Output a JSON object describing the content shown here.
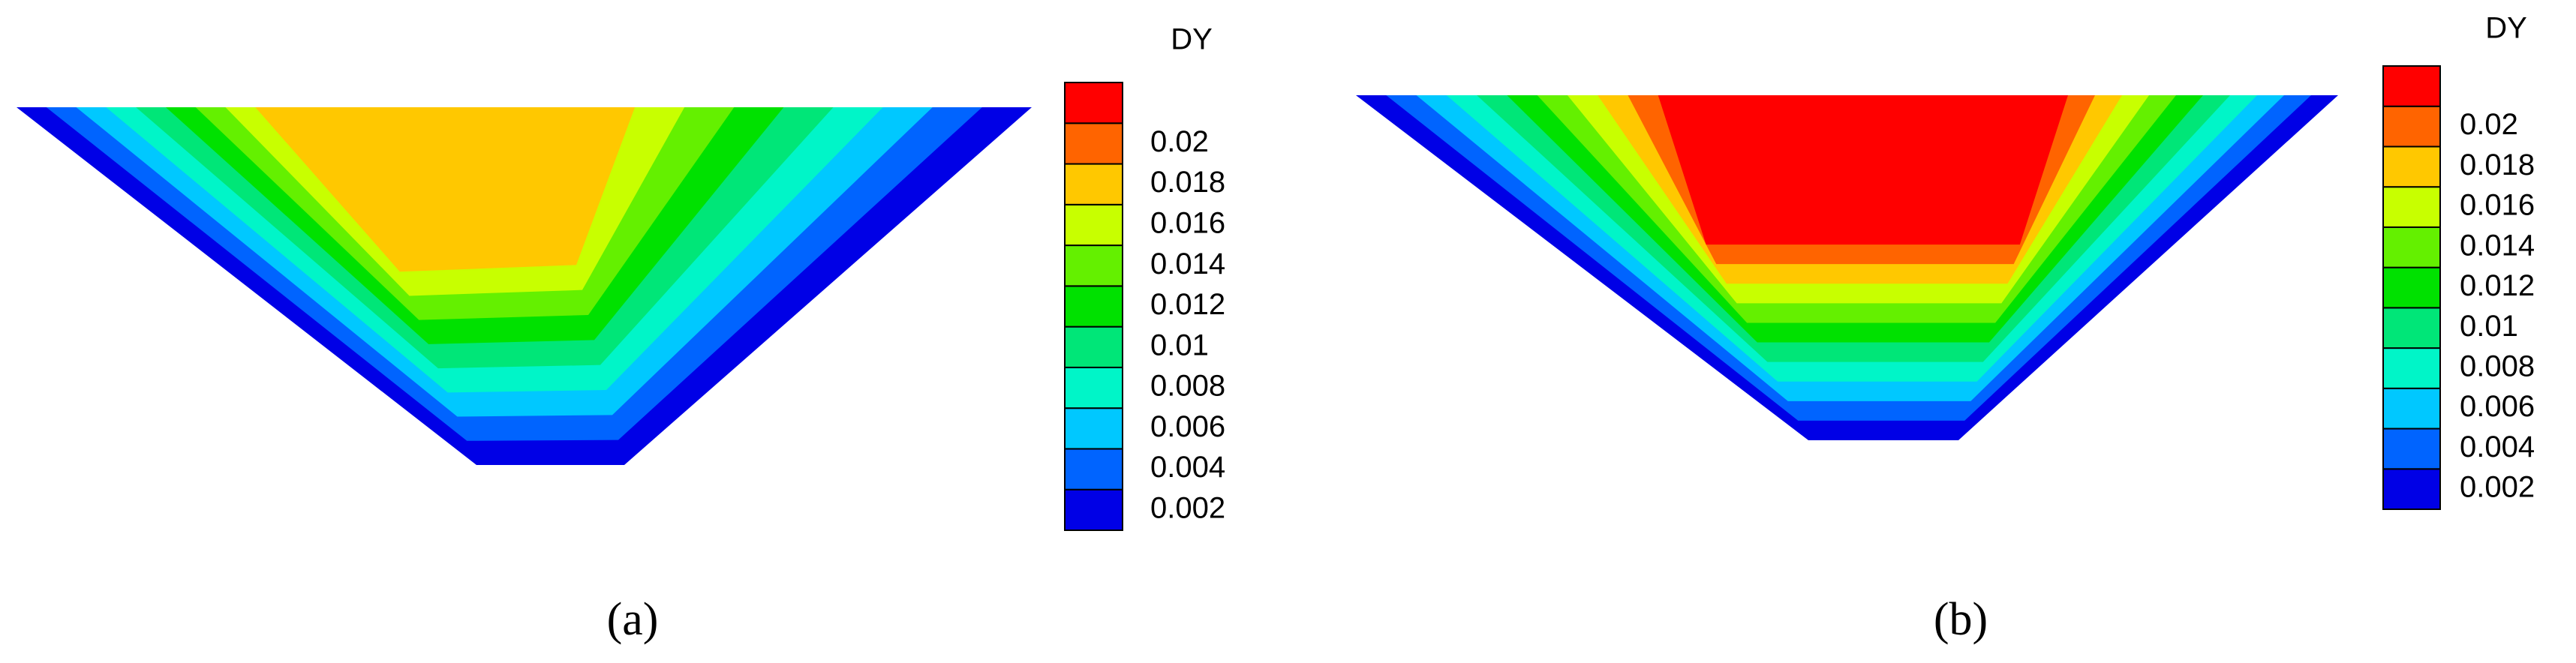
{
  "chart_data": [
    {
      "type": "contour",
      "title": "DY",
      "label": "(a)",
      "colorbar": {
        "ticks": [
          0.002,
          0.004,
          0.006,
          0.008,
          0.01,
          0.012,
          0.014,
          0.016,
          0.018,
          0.02
        ],
        "colors": [
          "#0000e6",
          "#0064ff",
          "#00c8ff",
          "#00f5c8",
          "#00e678",
          "#00e100",
          "#64f000",
          "#c8ff00",
          "#ffc800",
          "#ff6400",
          "#ff0000"
        ]
      }
    },
    {
      "type": "contour",
      "title": "DY",
      "label": "(b)",
      "colorbar": {
        "ticks": [
          0.002,
          0.004,
          0.006,
          0.008,
          0.01,
          0.012,
          0.014,
          0.016,
          0.018,
          0.02
        ],
        "colors": [
          "#0000e6",
          "#0064ff",
          "#00c8ff",
          "#00f5c8",
          "#00e678",
          "#00e100",
          "#64f000",
          "#c8ff00",
          "#ffc800",
          "#ff6400",
          "#ff0000"
        ]
      }
    }
  ]
}
